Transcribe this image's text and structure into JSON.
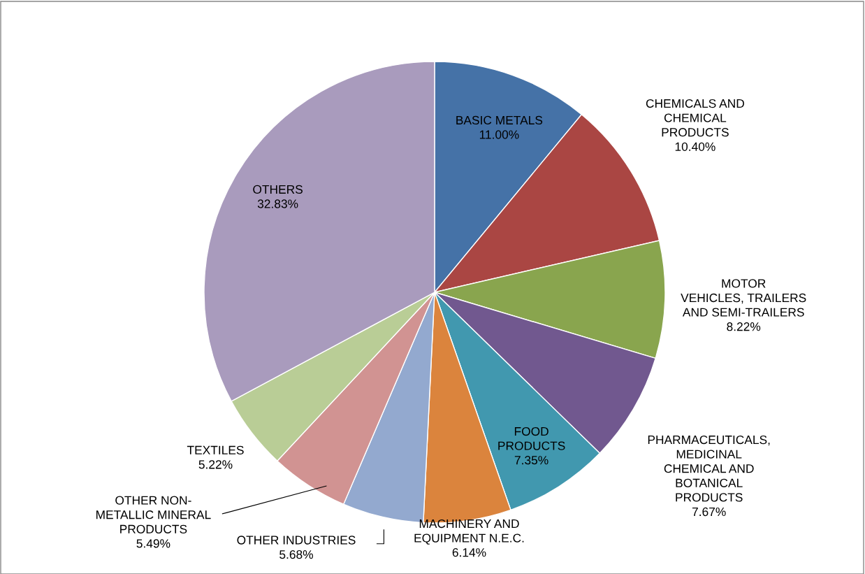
{
  "chart_data": {
    "type": "pie",
    "categories": [
      "BASIC METALS",
      "CHEMICALS AND\nCHEMICAL\nPRODUCTS",
      "MOTOR\nVEHICLES, TRAILERS\nAND SEMI-TRAILERS",
      "PHARMACEUTICALS,\nMEDICINAL\nCHEMICAL AND\nBOTANICAL\nPRODUCTS",
      "FOOD\nPRODUCTS",
      "MACHINERY AND\nEQUIPMENT N.E.C.",
      "OTHER INDUSTRIES",
      "OTHER NON-\nMETALLIC MINERAL\nPRODUCTS",
      "TEXTILES",
      "OTHERS"
    ],
    "values": [
      11.0,
      10.4,
      8.22,
      7.67,
      7.35,
      6.14,
      5.68,
      5.49,
      5.22,
      32.83
    ],
    "value_labels": [
      "11.00%",
      "10.40%",
      "8.22%",
      "7.67%",
      "7.35%",
      "6.14%",
      "5.68%",
      "5.49%",
      "5.22%",
      "32.83%"
    ],
    "colors": [
      "#4572a7",
      "#aa4643",
      "#89a54e",
      "#71588f",
      "#4198af",
      "#db843d",
      "#93a9cf",
      "#d19392",
      "#b9cd96",
      "#a99bbd"
    ],
    "legend": false
  }
}
